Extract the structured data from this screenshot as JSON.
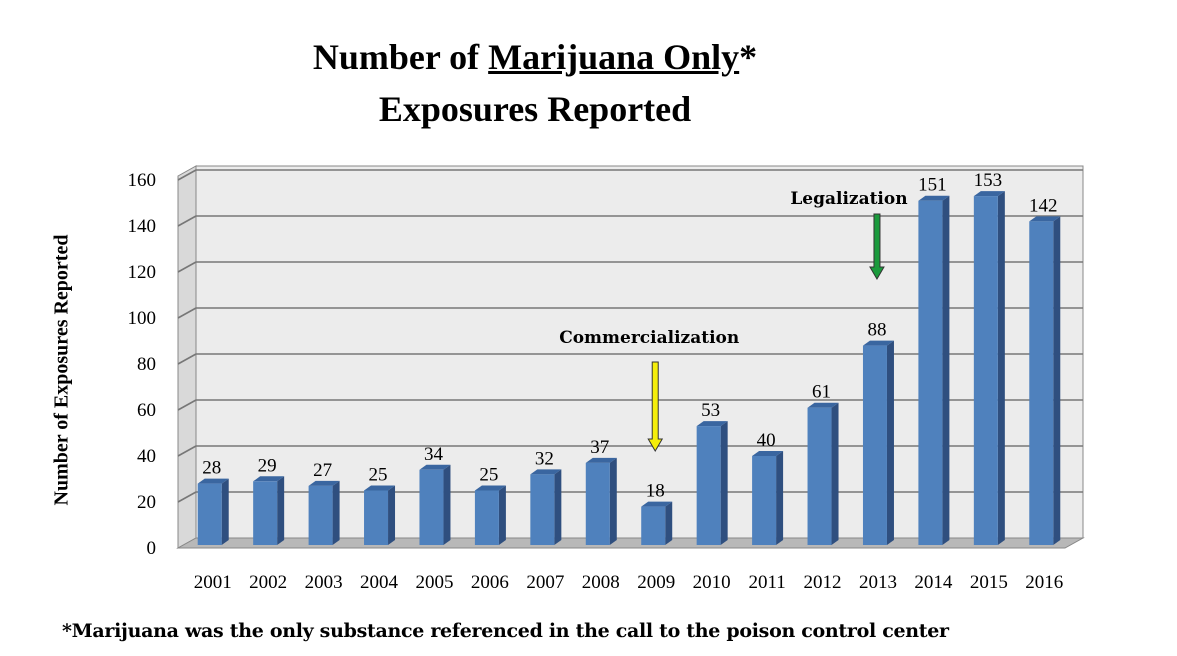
{
  "title": {
    "line1_prefix": "Number of ",
    "line1_underlined": "Marijuana Only",
    "line1_suffix": "*",
    "line2": "Exposures Reported"
  },
  "footnote": "*Marijuana was the only substance referenced in the call to the poison control center",
  "colors": {
    "bar_front": "#4f81bd",
    "bar_side": "#2f4f7f",
    "bar_top": "#3a66a0",
    "wall": "#ececec",
    "floor": "#b8b8b8",
    "legalization_arrow": "#1a9a3c",
    "commercialization_arrow": "#f5ee0a"
  },
  "chart_data": {
    "type": "bar",
    "title": "Number of Marijuana Only* Exposures Reported",
    "xlabel": "",
    "ylabel": "Number of Exposures Reported",
    "ylim": [
      0,
      160
    ],
    "yticks": [
      0,
      20,
      40,
      60,
      80,
      100,
      120,
      140,
      160
    ],
    "grid": true,
    "categories": [
      "2001",
      "2002",
      "2003",
      "2004",
      "2005",
      "2006",
      "2007",
      "2008",
      "2009",
      "2010",
      "2011",
      "2012",
      "2013",
      "2014",
      "2015",
      "2016"
    ],
    "values": [
      28,
      29,
      27,
      25,
      34,
      25,
      32,
      37,
      18,
      53,
      40,
      61,
      88,
      151,
      153,
      142
    ],
    "annotations": [
      {
        "text": "Commercialization",
        "category": "2009",
        "arrow": "down",
        "color": "yellow"
      },
      {
        "text": "Legalization",
        "category": "2013",
        "arrow": "down",
        "color": "green"
      }
    ]
  }
}
